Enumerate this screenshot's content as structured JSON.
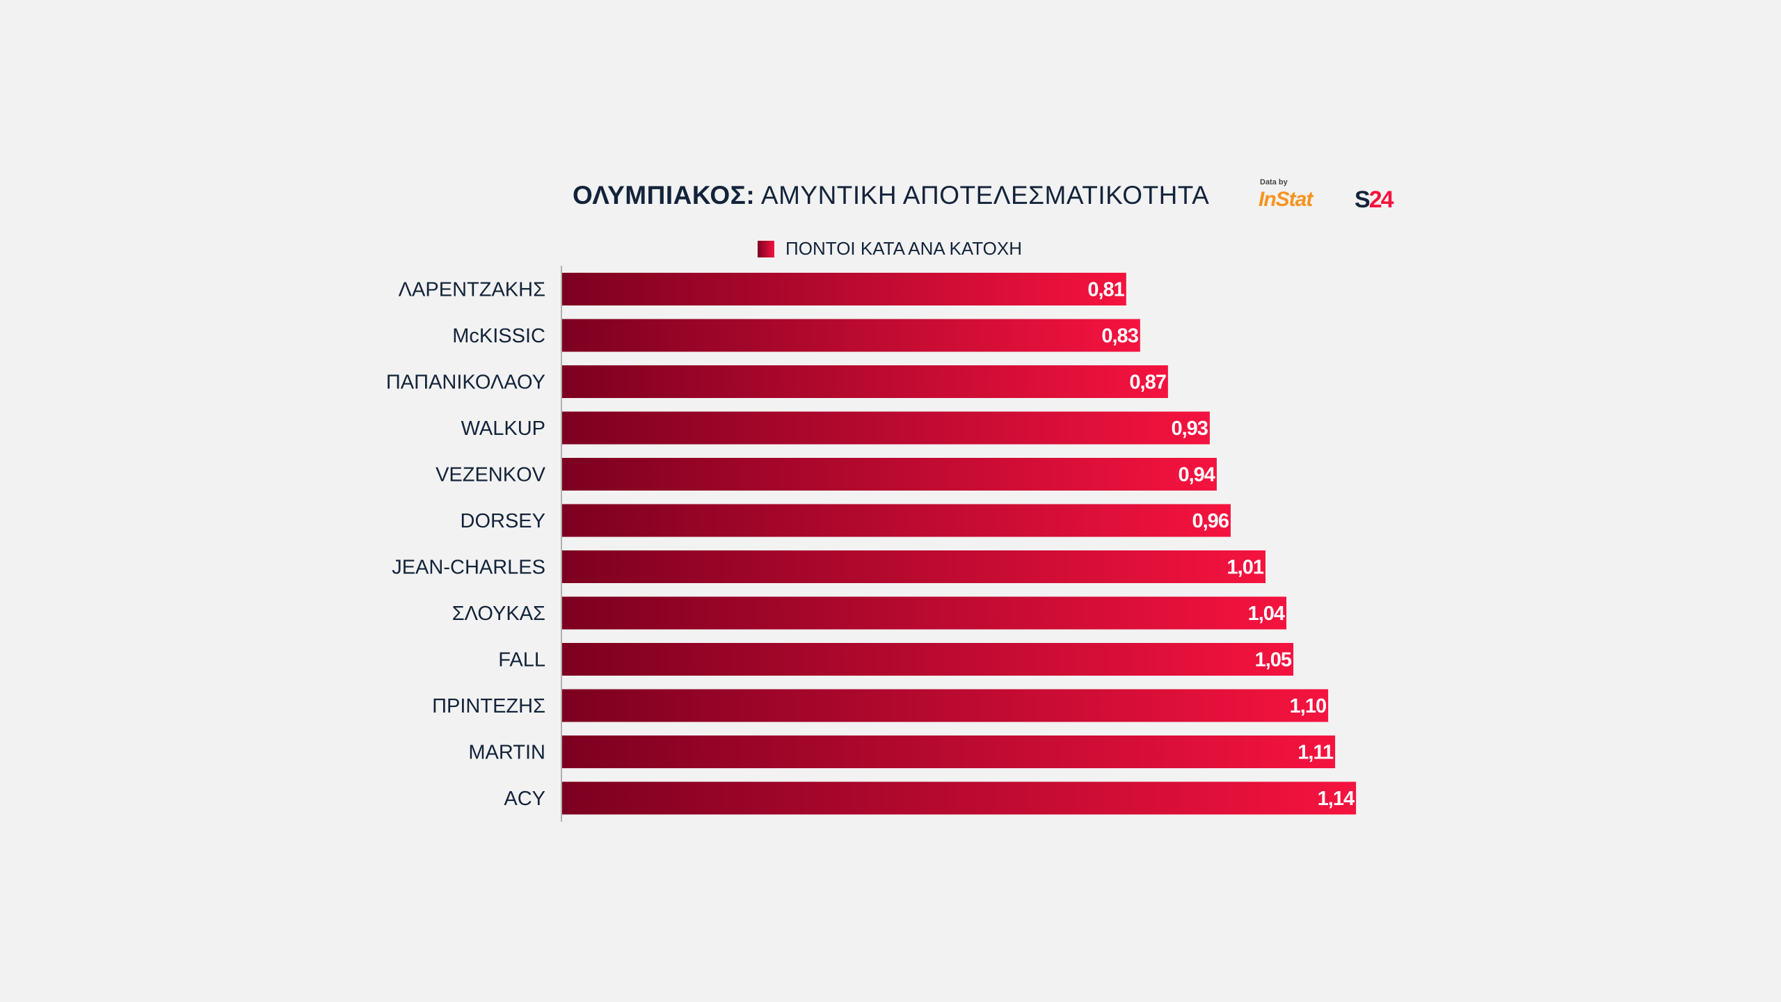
{
  "header": {
    "title_bold": "ΟΛΥΜΠΙΑΚΟΣ:",
    "title_rest": " ΑΜΥΝΤΙΚΗ ΑΠΟΤΕΛΕΣΜΑΤΙΚΟΤΗΤΑ",
    "logo": {
      "data_by": "Data by",
      "instat": "InStat",
      "s24_s": "S",
      "s24_num": "24"
    }
  },
  "colors": {
    "bar_start": "#7d0020",
    "bar_end": "#f5133f",
    "text": "#13233a",
    "background": "#f2f2f2"
  },
  "chart_data": {
    "type": "bar",
    "orientation": "horizontal",
    "title": "ΟΛΥΜΠΙΑΚΟΣ: ΑΜΥΝΤΙΚΗ ΑΠΟΤΕΛΕΣΜΑΤΙΚΟΤΗΤΑ",
    "legend": {
      "entries": [
        "ΠΟΝΤΟΙ ΚΑΤΑ ΑΝΑ ΚΑΤΟΧΗ"
      ],
      "placement": "top"
    },
    "categories": [
      "ΛΑΡΕΝΤΖΑΚΗΣ",
      "McKISSIC",
      "ΠΑΠΑΝΙΚΟΛΑΟΥ",
      "WALKUP",
      "VEZENKOV",
      "DORSEY",
      "JEAN-CHARLES",
      "ΣΛΟΥΚΑΣ",
      "FALL",
      "ΠΡΙΝΤΕΖΗΣ",
      "MARTIN",
      "ACY"
    ],
    "values": [
      0.81,
      0.83,
      0.87,
      0.93,
      0.94,
      0.96,
      1.01,
      1.04,
      1.05,
      1.1,
      1.11,
      1.14
    ],
    "value_labels": [
      "0,81",
      "0,83",
      "0,87",
      "0,93",
      "0,94",
      "0,96",
      "1,01",
      "1,04",
      "1,05",
      "1,10",
      "1,11",
      "1,14"
    ],
    "xlim": [
      0,
      1.14
    ],
    "grid": false
  }
}
